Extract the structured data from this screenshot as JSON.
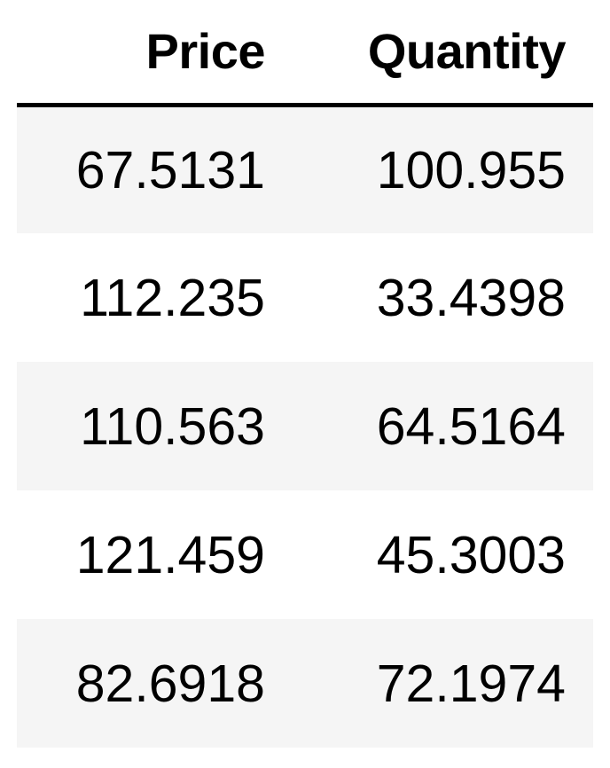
{
  "table": {
    "columns": [
      "Price",
      "Quantity"
    ],
    "rows": [
      [
        "67.5131",
        "100.955"
      ],
      [
        "112.235",
        "33.4398"
      ],
      [
        "110.563",
        "64.5164"
      ],
      [
        "121.459",
        "45.3003"
      ],
      [
        "82.6918",
        "72.1974"
      ]
    ]
  },
  "colors": {
    "header_rule": "#000000",
    "striped_row_background": "#f5f5f5",
    "text": "#000000"
  }
}
